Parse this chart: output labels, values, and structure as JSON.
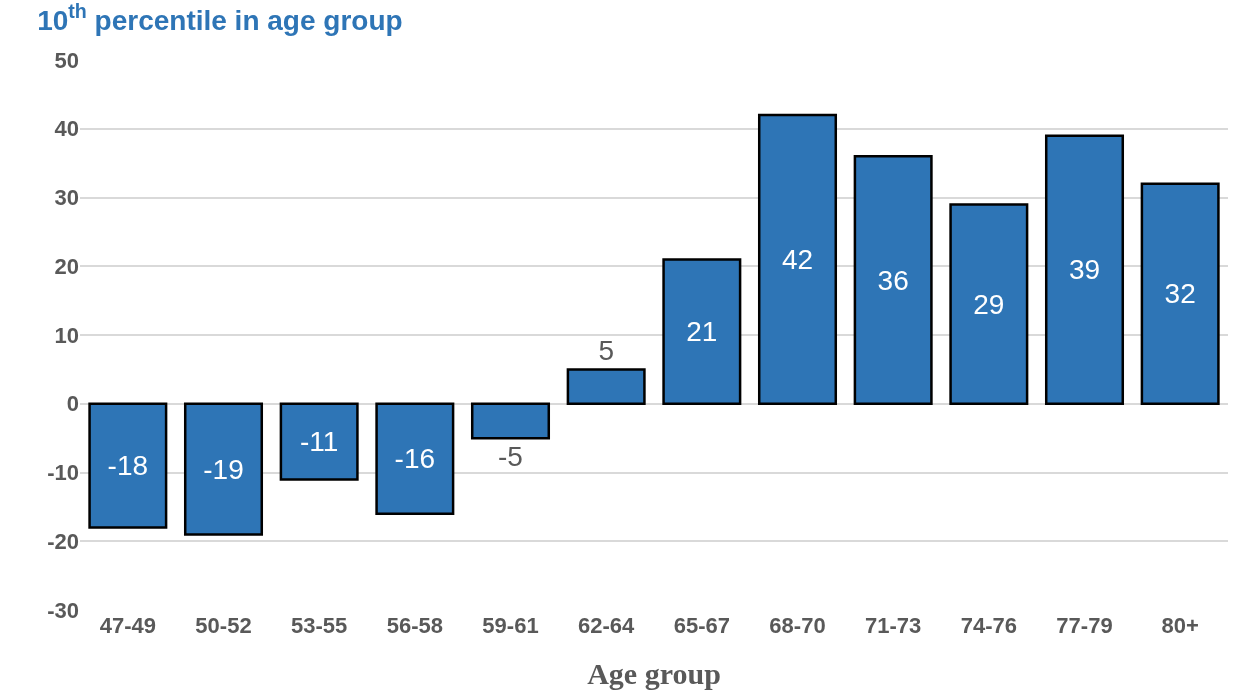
{
  "chart_data": {
    "type": "bar",
    "title": "10$^{th}$ percentile in age group",
    "xlabel": "Age group",
    "categories": [
      "47-49",
      "50-52",
      "53-55",
      "56-58",
      "59-61",
      "62-64",
      "65-67",
      "68-70",
      "71-73",
      "74-76",
      "77-79",
      "80+"
    ],
    "values": [
      -18,
      -19,
      -11,
      -16,
      -5,
      5,
      21,
      42,
      36,
      29,
      39,
      32
    ],
    "color": "#2e75b6",
    "ylim": [
      -30,
      50
    ],
    "yticks": [
      -30,
      -20,
      -10,
      0,
      10,
      20,
      30,
      40,
      50
    ],
    "grid": "y",
    "data_labels": true,
    "legend": false
  }
}
